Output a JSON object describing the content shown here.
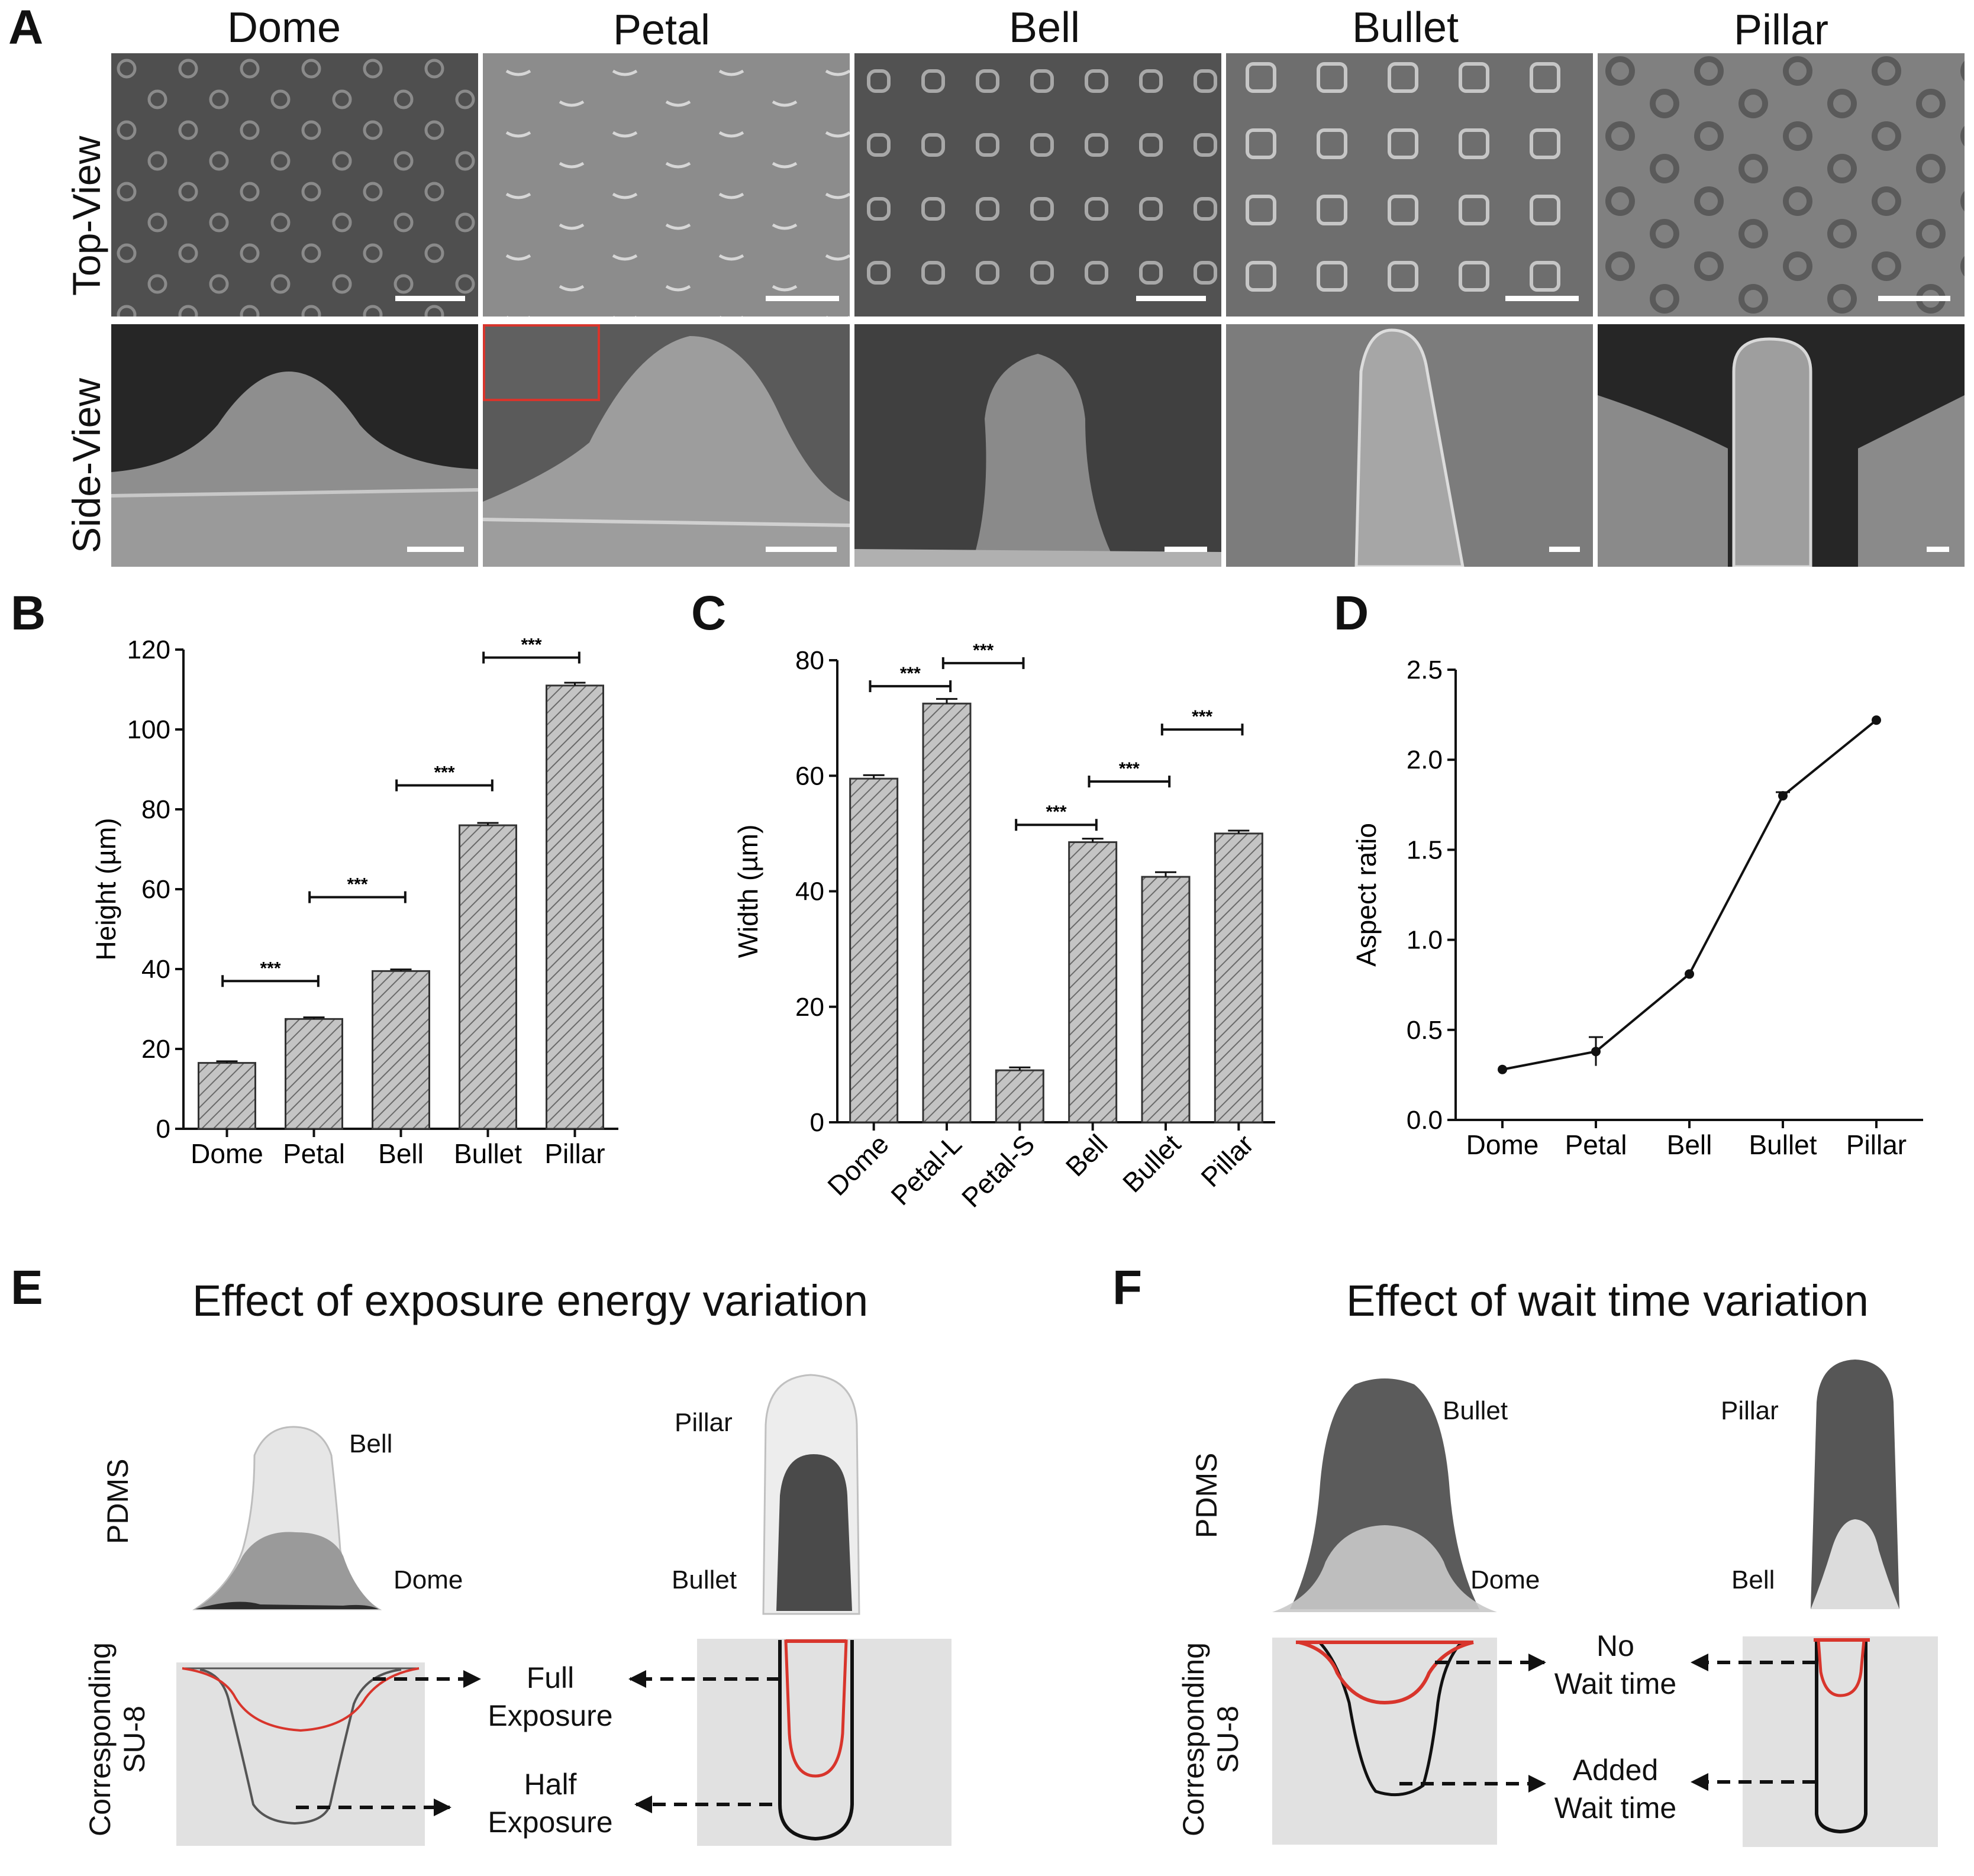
{
  "panels": {
    "A": "A",
    "B": "B",
    "C": "C",
    "D": "D",
    "E": "E",
    "F": "F"
  },
  "panel_a": {
    "columns": [
      "Dome",
      "Petal",
      "Bell",
      "Bullet",
      "Pillar"
    ],
    "rows": [
      "Top-View",
      "Side-View"
    ]
  },
  "chart_data": [
    {
      "type": "bar",
      "panel": "B",
      "categories": [
        "Dome",
        "Petal",
        "Bell",
        "Bullet",
        "Pillar"
      ],
      "values": [
        16.5,
        27.5,
        39.5,
        76,
        111
      ],
      "errors": [
        0.4,
        0.4,
        0.4,
        0.6,
        0.7
      ],
      "ylabel": "Height (µm)",
      "ylim": [
        0,
        120
      ],
      "yticks": [
        0,
        20,
        40,
        60,
        80,
        100,
        120
      ],
      "significance": [
        {
          "from": "Dome",
          "to": "Petal",
          "label": "***",
          "y": 37
        },
        {
          "from": "Petal",
          "to": "Bell",
          "label": "***",
          "y": 58
        },
        {
          "from": "Bell",
          "to": "Bullet",
          "label": "***",
          "y": 86
        },
        {
          "from": "Bullet",
          "to": "Pillar",
          "label": "***",
          "y": 118
        }
      ]
    },
    {
      "type": "bar",
      "panel": "C",
      "categories": [
        "Dome",
        "Petal-L",
        "Petal-S",
        "Bell",
        "Bullet",
        "Pillar"
      ],
      "values": [
        59.5,
        72.5,
        9,
        48.5,
        42.5,
        50
      ],
      "errors": [
        0.6,
        0.8,
        0.5,
        0.6,
        0.8,
        0.5
      ],
      "ylabel": "Width (µm)",
      "ylim": [
        0,
        80
      ],
      "yticks": [
        0,
        20,
        40,
        60,
        80
      ],
      "significance": [
        {
          "from": "Dome",
          "to": "Petal-L",
          "label": "***",
          "y": 75.5
        },
        {
          "from": "Petal-L",
          "to": "Petal-S",
          "label": "***",
          "y": 79.5
        },
        {
          "from": "Petal-S",
          "to": "Bell",
          "label": "***",
          "y": 51.5
        },
        {
          "from": "Bell",
          "to": "Bullet",
          "label": "***",
          "y": 59
        },
        {
          "from": "Bullet",
          "to": "Pillar",
          "label": "***",
          "y": 68
        }
      ]
    },
    {
      "type": "line",
      "panel": "D",
      "categories": [
        "Dome",
        "Petal",
        "Bell",
        "Bullet",
        "Pillar"
      ],
      "values": [
        0.28,
        0.38,
        0.81,
        1.8,
        2.22
      ],
      "errors": [
        0.01,
        0.08,
        0.01,
        0.02,
        0.01
      ],
      "ylabel": "Aspect ratio",
      "ylim": [
        0,
        2.5
      ],
      "yticks": [
        "0.0",
        "0.5",
        "1.0",
        "1.5",
        "2.0",
        "2.5"
      ]
    }
  ],
  "panel_e": {
    "title": "Effect of exposure energy variation",
    "pdms_label": "PDMS",
    "su8_label": "Corresponding SU-8",
    "labels": {
      "bell": "Bell",
      "dome": "Dome",
      "pillar": "Pillar",
      "bullet": "Bullet"
    },
    "full_line1": "Full",
    "full_line2": "Exposure",
    "half_line1": "Half",
    "half_line2": "Exposure"
  },
  "panel_f": {
    "title": "Effect of wait time variation",
    "pdms_label": "PDMS",
    "su8_label": "Corresponding SU-8",
    "labels": {
      "bullet": "Bullet",
      "dome": "Dome",
      "pillar": "Pillar",
      "bell": "Bell"
    },
    "no_line1": "No",
    "no_line2": "Wait time",
    "added_line1": "Added",
    "added_line2": "Wait time"
  },
  "colors": {
    "sem_bg": "#7a7a7a",
    "sem_dark": "#3c3c3c",
    "bar_fill": "#c4c4c4",
    "highlight_red": "#d8352c",
    "su8_bg": "#e1e1e1"
  }
}
